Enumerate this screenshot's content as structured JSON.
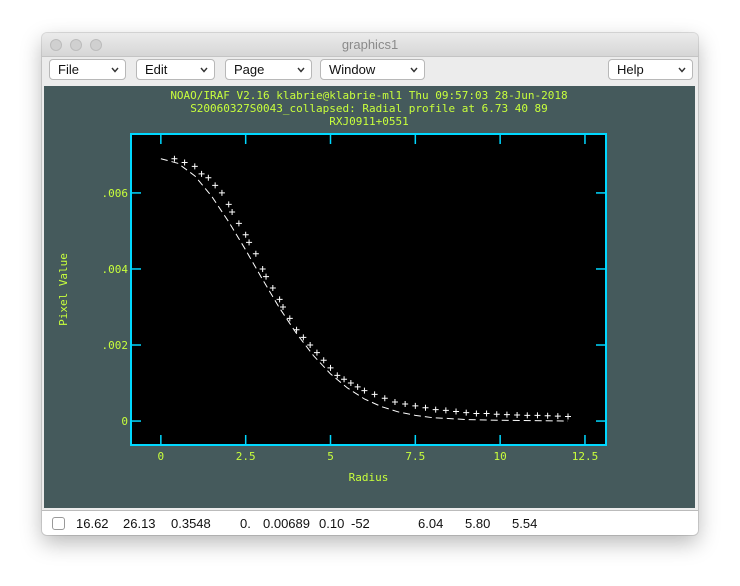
{
  "window": {
    "title": "graphics1",
    "menus": [
      "File",
      "Edit",
      "Page",
      "Window",
      "Help"
    ]
  },
  "chart_data": {
    "type": "scatter",
    "title_lines": [
      "NOAO/IRAF V2.16 klabrie@klabrie-ml1 Thu 09:57:03 28-Jun-2018",
      "S20060327S0043_collapsed: Radial profile at 6.73 40 89",
      "RXJ0911+0551"
    ],
    "x_label": "Radius",
    "y_label": "Pixel Value",
    "xlim": [
      -0.88,
      13.12
    ],
    "ylim": [
      -0.00063,
      0.00755
    ],
    "xticks": [
      0,
      2.5,
      5,
      7.5,
      10,
      12.5
    ],
    "yticks": [
      0,
      {
        "value": 0.002,
        "label": ".002"
      },
      {
        "value": 0.004,
        "label": ".004"
      },
      {
        "value": 0.006,
        "label": ".006"
      }
    ],
    "background": "#000000",
    "frame_color": "#00d8ff",
    "text_color": "#c8ff3c",
    "series": [
      {
        "type": "scatter",
        "color": "#ffffff",
        "x": [
          0.4,
          0.7,
          1.0,
          1.2,
          1.4,
          1.6,
          1.8,
          2.0,
          2.1,
          2.3,
          2.5,
          2.6,
          2.8,
          3.0,
          3.1,
          3.3,
          3.5,
          3.6,
          3.8,
          4.0,
          4.2,
          4.4,
          4.6,
          4.8,
          5.0,
          5.2,
          5.4,
          5.6,
          5.8,
          6.0,
          6.3,
          6.6,
          6.9,
          7.2,
          7.5,
          7.8,
          8.1,
          8.4,
          8.7,
          9.0,
          9.3,
          9.6,
          9.9,
          10.2,
          10.5,
          10.8,
          11.1,
          11.4,
          11.7,
          12.0
        ],
        "values": [
          0.0069,
          0.0068,
          0.0067,
          0.0065,
          0.0064,
          0.0062,
          0.006,
          0.0057,
          0.0055,
          0.0052,
          0.0049,
          0.0047,
          0.0044,
          0.004,
          0.0038,
          0.0035,
          0.0032,
          0.003,
          0.0027,
          0.0024,
          0.0022,
          0.002,
          0.0018,
          0.0016,
          0.0014,
          0.0012,
          0.0011,
          0.001,
          0.0009,
          0.0008,
          0.0007,
          0.0006,
          0.0005,
          0.00045,
          0.0004,
          0.00035,
          0.0003,
          0.00028,
          0.00025,
          0.00022,
          0.0002,
          0.0002,
          0.00018,
          0.00017,
          0.00016,
          0.00015,
          0.00015,
          0.00014,
          0.00013,
          0.00012
        ]
      },
      {
        "type": "line",
        "dashed": true,
        "color": "#ffffff",
        "x": [
          0,
          0.5,
          1,
          1.5,
          2,
          2.5,
          3,
          3.5,
          4,
          4.5,
          5,
          5.5,
          6,
          6.5,
          7,
          7.5,
          8,
          9,
          10,
          11,
          12
        ],
        "values": [
          0.0069,
          0.00678,
          0.00645,
          0.00591,
          0.00524,
          0.0045,
          0.00372,
          0.00297,
          0.0023,
          0.00172,
          0.00124,
          0.00087,
          0.00058,
          0.00038,
          0.00024,
          0.00015,
          9e-05,
          4e-05,
          2e-05,
          1e-05,
          0
        ]
      }
    ]
  },
  "status": [
    "16.62",
    "26.13",
    "0.3548",
    "0.",
    "0.00689",
    "0.10",
    "-52",
    "6.04",
    "5.80",
    "5.54"
  ]
}
